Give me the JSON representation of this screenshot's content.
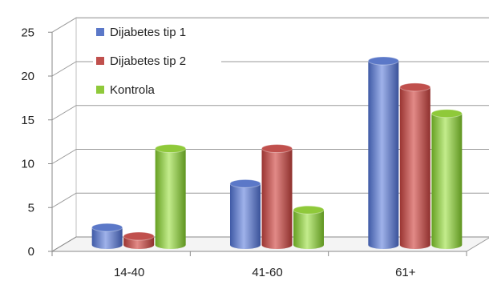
{
  "chart_data": {
    "type": "bar",
    "categories": [
      "14-40",
      "41-60",
      "61+"
    ],
    "series": [
      {
        "name": "Dijabetes tip 1",
        "values": [
          2,
          7,
          21
        ],
        "color": "#5b78c8"
      },
      {
        "name": "Dijabetes tip 2",
        "values": [
          1,
          11,
          18
        ],
        "color": "#c0504d"
      },
      {
        "name": "Kontrola",
        "values": [
          11,
          4,
          15
        ],
        "color": "#8fc93a"
      }
    ],
    "yticks": [
      "0",
      "5",
      "10",
      "15",
      "20",
      "25"
    ],
    "ylim": [
      0,
      25
    ],
    "grid": true,
    "legend": "top-left",
    "style": "3d-cylinder"
  }
}
